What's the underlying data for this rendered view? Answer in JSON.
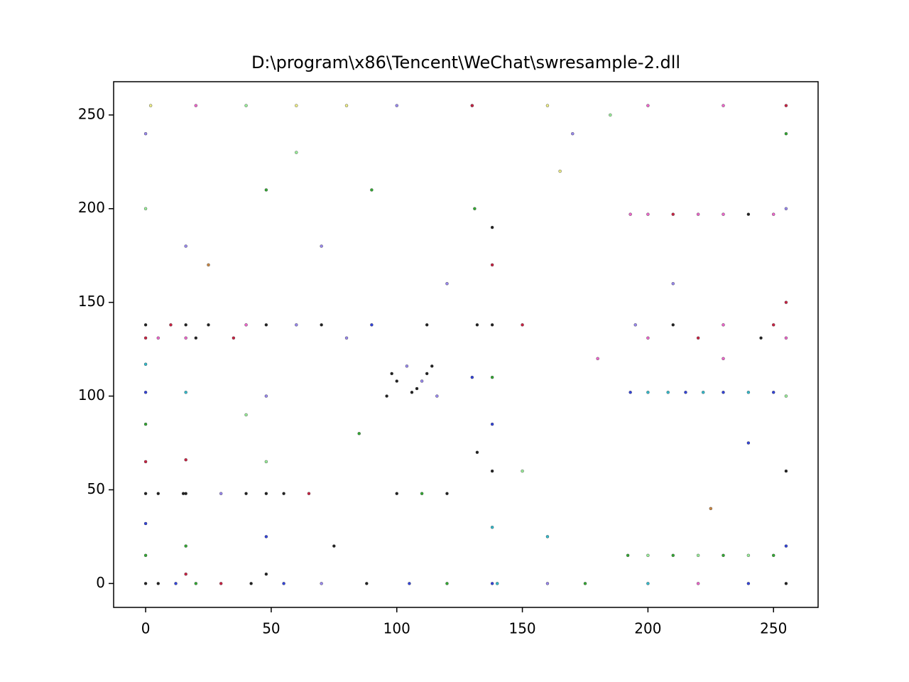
{
  "chart_data": {
    "type": "scatter",
    "title": "D:\\program\\x86\\Tencent\\WeChat\\swresample-2.dll",
    "xlim": [
      -12.75,
      267.75
    ],
    "ylim": [
      -12.75,
      267.75
    ],
    "xticks": [
      0,
      50,
      100,
      150,
      200,
      250
    ],
    "yticks": [
      0,
      50,
      100,
      150,
      200,
      250
    ],
    "x": [
      0,
      0,
      0,
      0,
      0,
      0,
      0,
      0,
      0,
      0,
      0,
      0,
      5,
      12,
      20,
      30,
      42,
      55,
      70,
      88,
      105,
      120,
      140,
      160,
      175,
      200,
      220,
      240,
      255,
      16,
      16,
      16,
      16,
      16,
      16,
      16,
      16,
      48,
      48,
      48,
      48,
      48,
      48,
      48,
      138,
      138,
      138,
      138,
      138,
      138,
      138,
      138,
      130,
      131,
      132,
      130,
      132,
      10,
      25,
      40,
      60,
      70,
      90,
      112,
      150,
      195,
      210,
      230,
      250,
      5,
      20,
      35,
      80,
      200,
      220,
      245,
      255,
      193,
      200,
      208,
      215,
      222,
      230,
      240,
      250,
      192,
      200,
      210,
      220,
      230,
      240,
      250,
      193,
      200,
      210,
      220,
      230,
      240,
      250,
      96,
      100,
      104,
      108,
      112,
      116,
      98,
      106,
      114,
      110,
      2,
      20,
      40,
      60,
      80,
      100,
      130,
      160,
      200,
      230,
      255,
      255,
      255,
      255,
      255,
      255,
      255,
      5,
      15,
      30,
      40,
      55,
      65,
      100,
      110,
      120,
      70,
      85,
      150,
      165,
      180,
      185,
      210,
      225,
      240,
      60,
      75,
      160,
      170,
      230,
      90,
      120,
      25,
      40
    ],
    "y": [
      0,
      15,
      32,
      48,
      65,
      85,
      102,
      117,
      131,
      138,
      200,
      240,
      0,
      0,
      0,
      0,
      0,
      0,
      0,
      0,
      0,
      0,
      0,
      0,
      0,
      0,
      0,
      0,
      0,
      5,
      20,
      48,
      66,
      102,
      131,
      138,
      180,
      5,
      25,
      48,
      65,
      100,
      138,
      210,
      0,
      30,
      60,
      85,
      110,
      138,
      170,
      190,
      255,
      200,
      138,
      110,
      70,
      138,
      138,
      138,
      138,
      138,
      138,
      138,
      138,
      138,
      138,
      138,
      138,
      131,
      131,
      131,
      131,
      131,
      131,
      131,
      131,
      102,
      102,
      102,
      102,
      102,
      102,
      102,
      102,
      15,
      15,
      15,
      15,
      15,
      15,
      15,
      197,
      197,
      197,
      197,
      197,
      197,
      197,
      100,
      108,
      116,
      104,
      112,
      100,
      112,
      102,
      116,
      108,
      255,
      255,
      255,
      255,
      255,
      255,
      255,
      255,
      255,
      255,
      255,
      20,
      60,
      100,
      150,
      200,
      240,
      48,
      48,
      48,
      48,
      48,
      48,
      48,
      48,
      48,
      180,
      80,
      60,
      220,
      120,
      250,
      160,
      40,
      75,
      230,
      20,
      25,
      240,
      120,
      210,
      160,
      170,
      90
    ],
    "colors": [
      "#222222",
      "#33aa33",
      "#3344dd",
      "#222222",
      "#cc2244",
      "#33aa33",
      "#3344dd",
      "#33bbcc",
      "#cc2244",
      "#222222",
      "#99ee99",
      "#9988ee",
      "#222222",
      "#3344dd",
      "#33aa33",
      "#cc2244",
      "#222222",
      "#3344dd",
      "#9988ee",
      "#222222",
      "#3344dd",
      "#33aa33",
      "#33bbcc",
      "#9988ee",
      "#33aa33",
      "#33bbcc",
      "#ee66cc",
      "#3344dd",
      "#222222",
      "#cc2244",
      "#33aa33",
      "#222222",
      "#cc2244",
      "#33bbcc",
      "#ee66cc",
      "#222222",
      "#9988ee",
      "#222222",
      "#3344dd",
      "#222222",
      "#99ee99",
      "#9988ee",
      "#222222",
      "#33aa33",
      "#3344dd",
      "#33bbcc",
      "#222222",
      "#3344dd",
      "#33aa33",
      "#222222",
      "#cc2244",
      "#222222",
      "#ee66cc",
      "#33aa33",
      "#222222",
      "#3344dd",
      "#222222",
      "#cc2244",
      "#222222",
      "#ee66cc",
      "#9988ee",
      "#222222",
      "#3344dd",
      "#222222",
      "#cc2244",
      "#9988ee",
      "#222222",
      "#ee66cc",
      "#cc2244",
      "#ee66cc",
      "#222222",
      "#cc2244",
      "#9988ee",
      "#ee66cc",
      "#cc2244",
      "#222222",
      "#ee66cc",
      "#3344dd",
      "#33bbcc",
      "#33bbcc",
      "#3344dd",
      "#33bbcc",
      "#3344dd",
      "#33bbcc",
      "#3344dd",
      "#33aa33",
      "#99ee99",
      "#33aa33",
      "#99ee99",
      "#33aa33",
      "#99ee99",
      "#33aa33",
      "#ee66cc",
      "#ee66cc",
      "#cc2244",
      "#ee66cc",
      "#ee66cc",
      "#222222",
      "#ee66cc",
      "#222222",
      "#222222",
      "#9988ee",
      "#222222",
      "#222222",
      "#9988ee",
      "#222222",
      "#222222",
      "#222222",
      "#9988ee",
      "#eeee88",
      "#ee66cc",
      "#99ee99",
      "#eeee88",
      "#eeee88",
      "#9988ee",
      "#cc2244",
      "#eeee88",
      "#ee66cc",
      "#ee66cc",
      "#cc2244",
      "#3344dd",
      "#222222",
      "#99ee99",
      "#cc2244",
      "#9988ee",
      "#33aa33",
      "#222222",
      "#222222",
      "#9988ee",
      "#222222",
      "#222222",
      "#cc2244",
      "#222222",
      "#33aa33",
      "#222222",
      "#9988ee",
      "#33aa33",
      "#99ee99",
      "#eeee88",
      "#ee66cc",
      "#99ee99",
      "#9988ee",
      "#cc8844",
      "#3344dd",
      "#99ee99",
      "#222222",
      "#33bbcc",
      "#9988ee",
      "#ee66cc",
      "#33aa33",
      "#9988ee",
      "#cc8844",
      "#99ee99"
    ]
  }
}
